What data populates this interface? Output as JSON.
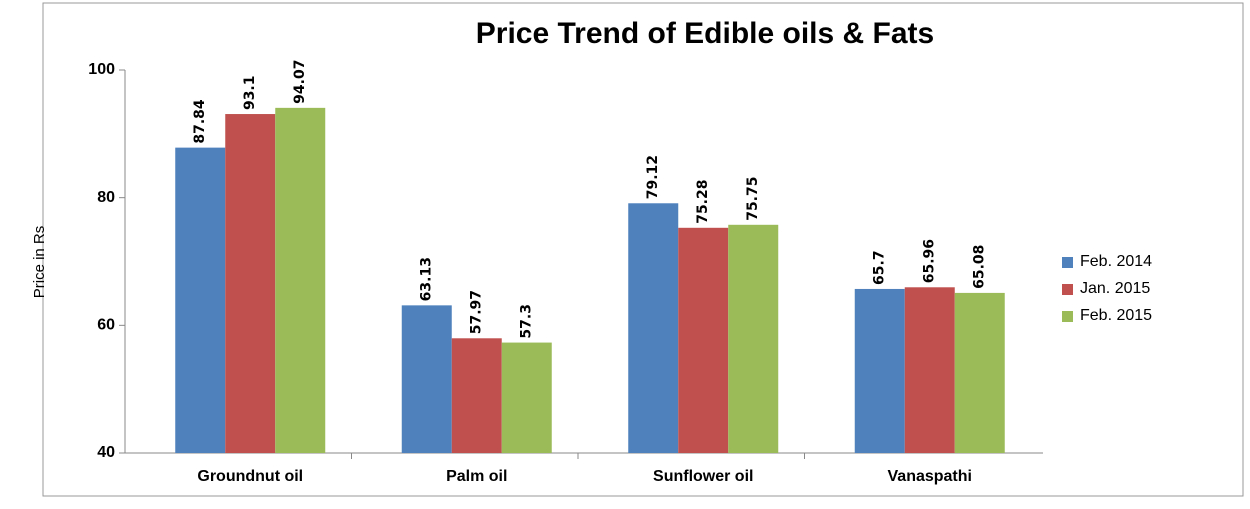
{
  "chart_data": {
    "type": "bar",
    "title": "Price Trend of Edible oils & Fats",
    "y_label": "Price in Rs",
    "categories": [
      "Groundnut oil",
      "Palm oil",
      "Sunflower oil",
      "Vanaspathi"
    ],
    "series": [
      {
        "name": "Feb. 2014",
        "color": "#4f81bd",
        "values": [
          87.84,
          63.13,
          79.12,
          65.7
        ]
      },
      {
        "name": "Jan. 2015",
        "color": "#c0504d",
        "values": [
          93.1,
          57.97,
          75.28,
          65.96
        ]
      },
      {
        "name": "Feb. 2015",
        "color": "#9bbb59",
        "values": [
          94.07,
          57.3,
          75.75,
          65.08
        ]
      }
    ],
    "ylim": [
      40,
      100
    ],
    "yticks": [
      40,
      60,
      80,
      100
    ],
    "grid": false,
    "legend": "right"
  }
}
